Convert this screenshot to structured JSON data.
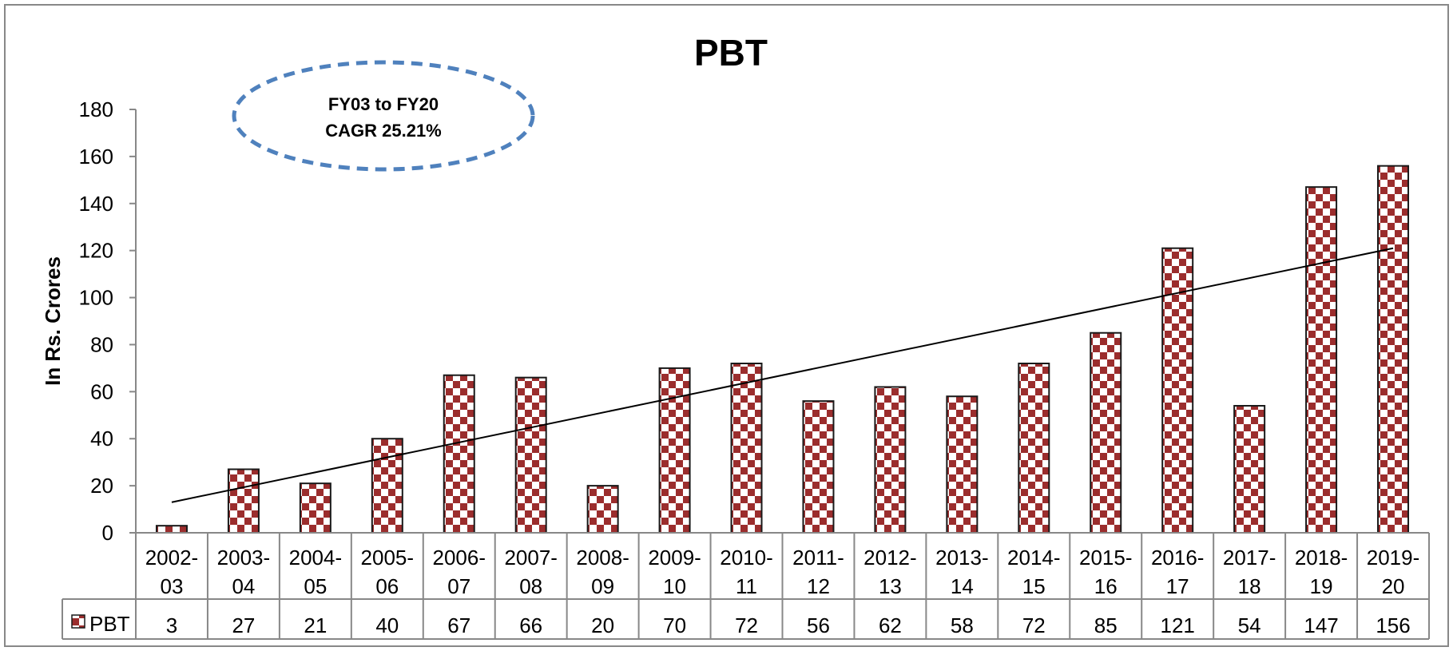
{
  "chart_data": {
    "type": "bar",
    "title": "PBT",
    "ylabel": "In Rs. Crores",
    "xlabel": "",
    "ylim": [
      0,
      180
    ],
    "yticks": [
      0,
      20,
      40,
      60,
      80,
      100,
      120,
      140,
      160,
      180
    ],
    "categories": [
      "2002-03",
      "2003-04",
      "2004-05",
      "2005-06",
      "2006-07",
      "2007-08",
      "2008-09",
      "2009-10",
      "2010-11",
      "2011-12",
      "2012-13",
      "2013-14",
      "2014-15",
      "2015-16",
      "2016-17",
      "2017-18",
      "2018-19",
      "2019-20"
    ],
    "series": [
      {
        "name": "PBT",
        "values": [
          3,
          27,
          21,
          40,
          67,
          66,
          20,
          70,
          72,
          56,
          62,
          58,
          72,
          85,
          121,
          54,
          147,
          156
        ]
      }
    ],
    "trendline": {
      "type": "linear",
      "y_start": 13,
      "y_end": 121
    },
    "annotation": {
      "line1": "FY03 to FY20",
      "line2": "CAGR 25.21%"
    },
    "data_table": true,
    "legend_position": "data-table",
    "grid": false,
    "bar_color": "#9b2d2d",
    "bar_pattern": "checkerboard",
    "annotation_color": "#4f81bd"
  }
}
